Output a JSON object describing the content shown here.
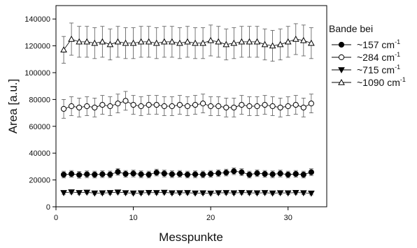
{
  "chart_data": {
    "type": "scatter",
    "xlabel": "Messpunkte",
    "ylabel": "Area [a.u.]",
    "xlim": [
      0,
      35
    ],
    "ylim": [
      0,
      150000
    ],
    "x_ticks": [
      "0",
      "10",
      "20",
      "30"
    ],
    "x_tick_values": [
      0,
      10,
      20,
      30
    ],
    "y_ticks": [
      "0",
      "20000",
      "40000",
      "60000",
      "80000",
      "100000",
      "120000",
      "140000"
    ],
    "y_tick_values": [
      0,
      20000,
      40000,
      60000,
      80000,
      100000,
      120000,
      140000
    ],
    "grid": false,
    "legend": {
      "title": "Bande bei",
      "placement": "right",
      "entries": [
        {
          "label": "~157 cm",
          "sup": "-1",
          "marker": "filled-circle"
        },
        {
          "label": "~284 cm",
          "sup": "-1",
          "marker": "open-circle"
        },
        {
          "label": "~715 cm",
          "sup": "-1",
          "marker": "filled-triangle-down"
        },
        {
          "label": "~1090 cm",
          "sup": "-1",
          "marker": "open-triangle-up"
        }
      ]
    },
    "x": [
      1,
      2,
      3,
      4,
      5,
      6,
      7,
      8,
      9,
      10,
      11,
      12,
      13,
      14,
      15,
      16,
      17,
      18,
      19,
      20,
      21,
      22,
      23,
      24,
      25,
      26,
      27,
      28,
      29,
      30,
      31,
      32,
      33
    ],
    "series": [
      {
        "marker": "filled-circle",
        "values": [
          24000,
          24500,
          23800,
          24200,
          24000,
          24300,
          24100,
          26000,
          24500,
          24800,
          24200,
          24000,
          25500,
          24800,
          24300,
          24500,
          24000,
          24200,
          24100,
          24500,
          25000,
          25500,
          26500,
          25800,
          24000,
          25000,
          24500,
          24200,
          24800,
          24000,
          24500,
          24000,
          25800
        ],
        "errors": [
          2500,
          2500,
          2500,
          2500,
          2500,
          2500,
          2500,
          2500,
          2500,
          2500,
          2500,
          2500,
          2500,
          2500,
          2500,
          2500,
          2500,
          2500,
          2500,
          2500,
          2500,
          2500,
          2500,
          2500,
          2500,
          2500,
          2500,
          2500,
          2500,
          2500,
          2500,
          2500,
          2500
        ]
      },
      {
        "marker": "open-circle",
        "values": [
          73000,
          75000,
          74000,
          75000,
          74000,
          76000,
          75000,
          77000,
          79000,
          76000,
          75000,
          76000,
          76000,
          75000,
          75000,
          76000,
          75000,
          76000,
          77000,
          75000,
          75000,
          74000,
          74000,
          76000,
          75000,
          75000,
          76000,
          75000,
          74000,
          75000,
          76000,
          74000,
          77000
        ],
        "errors": [
          7000,
          7000,
          7000,
          7000,
          7000,
          7000,
          7000,
          7000,
          7000,
          7000,
          7000,
          7000,
          7000,
          7000,
          7000,
          7000,
          7000,
          7000,
          7000,
          7000,
          7000,
          7000,
          7000,
          7000,
          7000,
          7000,
          7000,
          7000,
          7000,
          7000,
          7000,
          7000,
          7000
        ]
      },
      {
        "marker": "filled-triangle-down",
        "values": [
          10500,
          11000,
          10500,
          10800,
          10200,
          10300,
          10500,
          10900,
          10400,
          10200,
          10300,
          10600,
          10500,
          10700,
          10300,
          10400,
          10500,
          10200,
          10300,
          10100,
          10400,
          10500,
          10300,
          10600,
          10400,
          10300,
          10500,
          10200,
          10400,
          10300,
          10600,
          10400,
          10100
        ],
        "errors": [
          1200,
          1200,
          1200,
          1200,
          1200,
          1200,
          1200,
          1200,
          1200,
          1200,
          1200,
          1200,
          1200,
          1200,
          1200,
          1200,
          1200,
          1200,
          1200,
          1200,
          1200,
          1200,
          1200,
          1200,
          1200,
          1200,
          1200,
          1200,
          1200,
          1200,
          1200,
          1200,
          1200
        ]
      },
      {
        "marker": "open-triangle-up",
        "values": [
          117000,
          125000,
          123000,
          123000,
          122000,
          123000,
          121000,
          123000,
          122000,
          122000,
          123000,
          123000,
          122000,
          123000,
          123000,
          122000,
          123000,
          122000,
          122000,
          124000,
          123000,
          121000,
          122000,
          123000,
          123000,
          123000,
          121000,
          120000,
          121000,
          123000,
          125000,
          124000,
          122000
        ],
        "errors": [
          10000,
          12000,
          11500,
          11500,
          11500,
          11500,
          11500,
          11500,
          11500,
          11500,
          11500,
          11500,
          11500,
          11500,
          11500,
          11500,
          11500,
          11500,
          11500,
          11500,
          11500,
          11500,
          11500,
          11500,
          11500,
          11500,
          11500,
          11500,
          11500,
          11500,
          11500,
          11500,
          11500
        ]
      }
    ]
  }
}
